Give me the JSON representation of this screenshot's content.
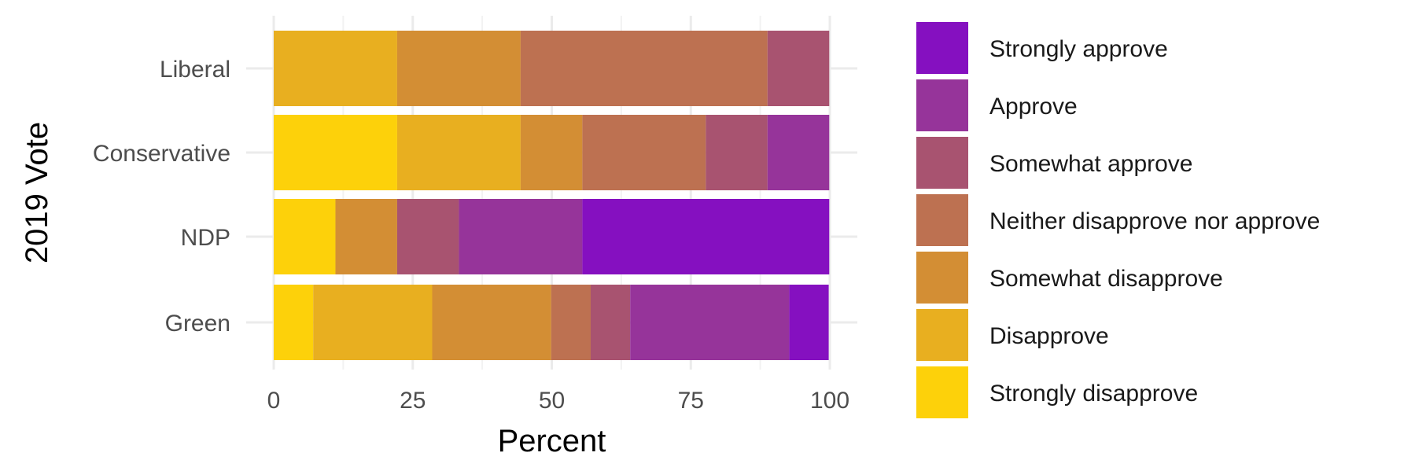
{
  "chart_data": {
    "type": "bar",
    "orientation": "horizontal",
    "stacked": true,
    "xlabel": "Percent",
    "ylabel": "2019 Vote",
    "xlim": [
      0,
      100
    ],
    "xticks": [
      0,
      25,
      50,
      75,
      100
    ],
    "grid": true,
    "legend_position": "right",
    "categories": [
      "Liberal",
      "Conservative",
      "NDP",
      "Green"
    ],
    "series": [
      {
        "name": "Strongly disapprove",
        "color": "#FDD10A",
        "values": [
          0,
          22.2,
          11.1,
          7.1
        ]
      },
      {
        "name": "Disapprove",
        "color": "#E8AF20",
        "values": [
          22.2,
          22.2,
          0,
          21.4
        ]
      },
      {
        "name": "Somewhat disapprove",
        "color": "#D38E34",
        "values": [
          22.2,
          11.1,
          11.1,
          21.4
        ]
      },
      {
        "name": "Neither disapprove nor approve",
        "color": "#BD7151",
        "values": [
          44.4,
          22.2,
          0,
          7.1
        ]
      },
      {
        "name": "Somewhat approve",
        "color": "#A85370",
        "values": [
          11.1,
          11.1,
          11.1,
          7.1
        ]
      },
      {
        "name": "Approve",
        "color": "#96349A",
        "values": [
          0,
          11.1,
          22.2,
          28.6
        ]
      },
      {
        "name": "Strongly approve",
        "color": "#8510C0",
        "values": [
          0,
          0,
          44.4,
          7.1
        ]
      }
    ],
    "legend_order": [
      "Strongly approve",
      "Approve",
      "Somewhat approve",
      "Neither disapprove nor approve",
      "Somewhat disapprove",
      "Disapprove",
      "Strongly disapprove"
    ]
  }
}
